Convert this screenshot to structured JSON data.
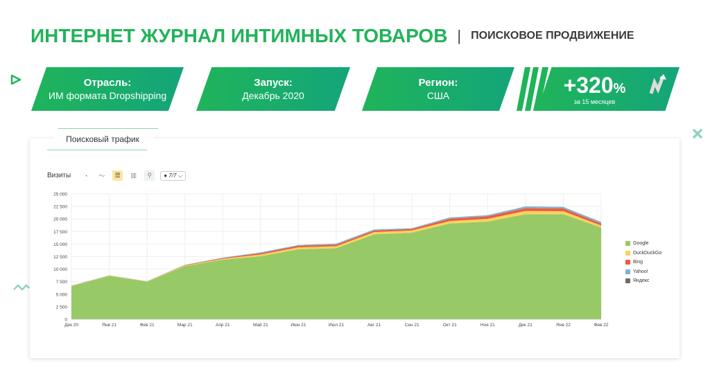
{
  "header": {
    "title": "ИНТЕРНЕТ ЖУРНАЛ ИНТИМНЫХ ТОВАРОВ",
    "separator": "|",
    "subtitle": "ПОИСКОВОЕ ПРОДВИЖЕНИЕ"
  },
  "cards": [
    {
      "label": "Отрасль:",
      "value": "ИМ формата Dropshipping"
    },
    {
      "label": "Запуск:",
      "value": "Декабрь 2020"
    },
    {
      "label": "Регион:",
      "value": "США"
    }
  ],
  "growth": {
    "value": "+320",
    "unit": "%",
    "caption": "за 15 месяцев",
    "icon": "growth-arrow-icon"
  },
  "colors": {
    "brand": "#1fb45a",
    "accent": "#14a57a"
  },
  "tab_label": "Поисковый трафик",
  "toolbar": {
    "label": "Визиты",
    "select_value": "7/7"
  },
  "chart_data": {
    "type": "area",
    "stacked": true,
    "grid": true,
    "legend": "right",
    "ylim": [
      0,
      25000
    ],
    "yticks": [
      "0",
      "2 500",
      "5 000",
      "7 500",
      "10 000",
      "12 500",
      "15 000",
      "17 500",
      "20 000",
      "22 500",
      "25 000"
    ],
    "categories": [
      "Дек 20",
      "Янв 21",
      "Фев 21",
      "Мар 21",
      "Апр 21",
      "Май 21",
      "Июн 21",
      "Июл 21",
      "Авг 21",
      "Сен 21",
      "Окт 21",
      "Ноя 21",
      "Дек 21",
      "Янв 22",
      "Фев 22"
    ],
    "series": [
      {
        "name": "Google",
        "color": "#97c966",
        "values": [
          6580,
          8650,
          7500,
          10590,
          11880,
          12570,
          13950,
          14180,
          16940,
          17265,
          19100,
          19475,
          20950,
          20950,
          18320
        ]
      },
      {
        "name": "DuckDuckGo",
        "color": "#f9d25f",
        "values": [
          50,
          50,
          40,
          120,
          180,
          350,
          400,
          400,
          450,
          450,
          500,
          550,
          650,
          600,
          380
        ]
      },
      {
        "name": "Bing",
        "color": "#ef5b3c",
        "values": [
          30,
          30,
          30,
          80,
          150,
          250,
          300,
          300,
          300,
          300,
          450,
          500,
          550,
          550,
          400
        ]
      },
      {
        "name": "Yahoo!",
        "color": "#7bb2d9",
        "values": [
          30,
          20,
          20,
          50,
          80,
          170,
          150,
          200,
          200,
          130,
          230,
          220,
          330,
          290,
          290
        ]
      },
      {
        "name": "Яндекс",
        "color": "#6b6b6b",
        "values": [
          10,
          10,
          10,
          10,
          10,
          10,
          10,
          10,
          10,
          10,
          20,
          20,
          20,
          20,
          20
        ]
      }
    ]
  }
}
